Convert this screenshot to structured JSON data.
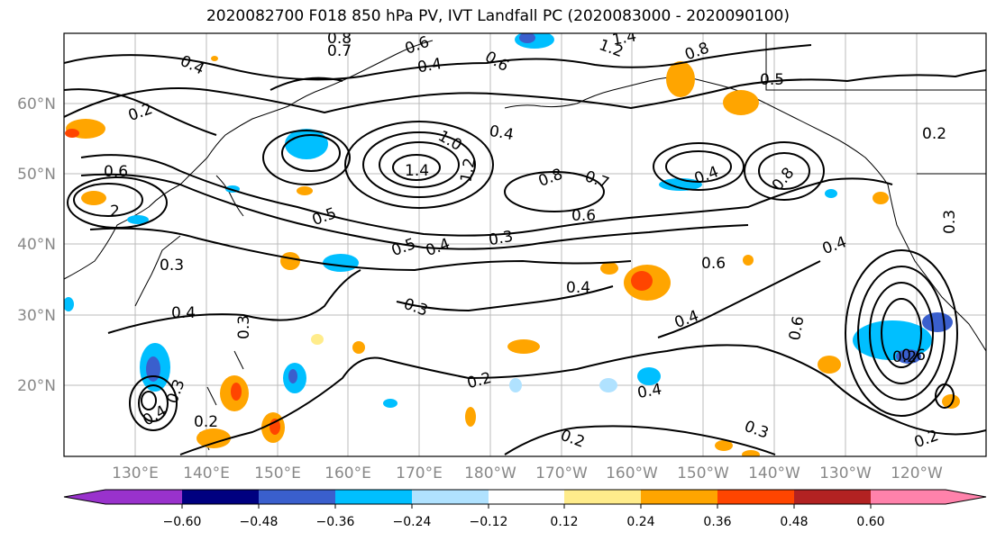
{
  "title": "2020082700 F018 850 hPa PV, IVT Landfall PC (2020083000 - 2020090100)",
  "lat_labels": [
    "60°N",
    "50°N",
    "40°N",
    "30°N",
    "20°N"
  ],
  "lon_labels": [
    "130°E",
    "140°E",
    "150°E",
    "160°E",
    "170°E",
    "180°W",
    "170°W",
    "160°W",
    "150°W",
    "140°W",
    "130°W",
    "120°W"
  ],
  "contour_labels": [
    "0.8",
    "0.7",
    "0.6",
    "1.4",
    "1.2",
    "0.8",
    "0.5",
    "0.4",
    "0.6",
    "0.2",
    "0.4",
    "0.6",
    "1.4",
    "1.0",
    "1.2",
    "0.4",
    "0.8",
    "0.7",
    "0.6",
    "0.4",
    "0.8",
    "0.5",
    "0.2",
    "0.3",
    "2",
    "0.5",
    "0.4",
    "0.3",
    "0.6",
    "0.4",
    "0.4",
    "0.3",
    "0.4",
    "0.3",
    "0.3",
    "0.4",
    "0.6",
    "0.2",
    "0.4",
    "0.3",
    "0.2",
    "0.4",
    "0.6",
    "0.2",
    "0.3",
    "0.2",
    "0.2"
  ],
  "colorbar": {
    "colors": [
      "#9932CC",
      "#000080",
      "#3A5FCD",
      "#00BFFF",
      "#B0E2FF",
      "#FFFFFF",
      "#FFEC8B",
      "#FFA500",
      "#FF4500",
      "#B22222",
      "#FF82AB"
    ],
    "tick_labels": [
      "−0.60",
      "−0.48",
      "−0.36",
      "−0.24",
      "−0.12",
      "0.12",
      "0.24",
      "0.36",
      "0.48",
      "0.60"
    ]
  }
}
